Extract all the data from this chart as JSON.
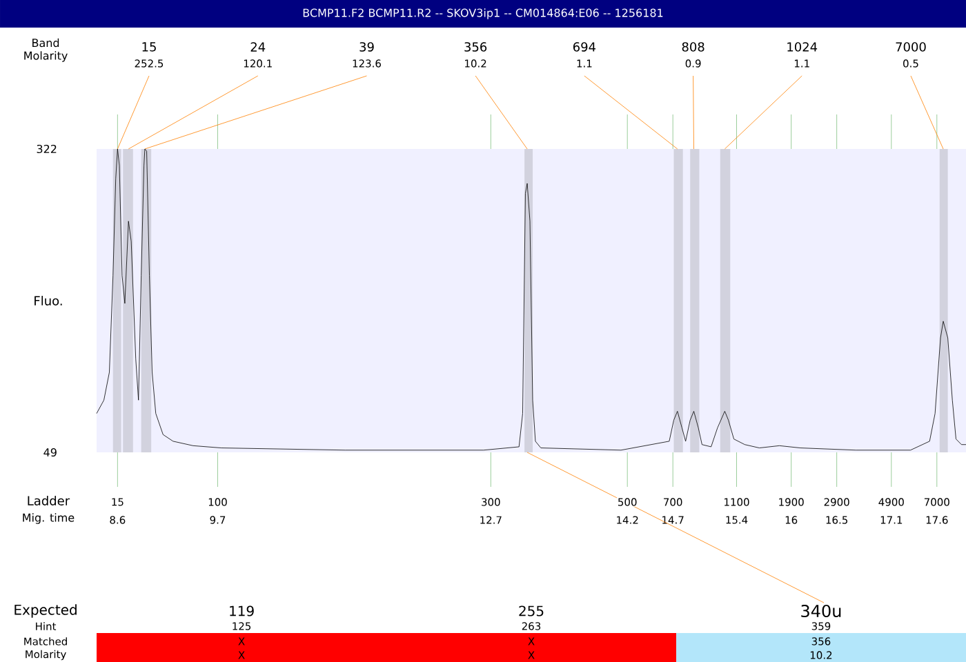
{
  "chart_data": {
    "type": "line",
    "title": "BCMP11.F2  BCMP11.R2 -- SKOV3ip1 -- CM014864:E06 -- 1256181",
    "xlabel": "Mig. time",
    "ylabel": "Fluo.",
    "xlim": [
      8.37,
      17.92
    ],
    "ylim": [
      49,
      322
    ],
    "yticks": [
      49,
      322
    ],
    "xticks": [
      8.6,
      9.7,
      12.7,
      14.2,
      14.7,
      15.4,
      16,
      16.5,
      17.1,
      17.6
    ],
    "x": [
      8.37,
      8.45,
      8.51,
      8.55,
      8.58,
      8.6,
      8.62,
      8.65,
      8.68,
      8.72,
      8.75,
      8.8,
      8.83,
      8.86,
      8.89,
      8.9,
      8.92,
      8.95,
      8.98,
      9.02,
      9.1,
      9.21,
      9.43,
      9.74,
      11.1,
      12.62,
      13.01,
      13.05,
      13.08,
      13.1,
      13.13,
      13.16,
      13.19,
      13.25,
      14.13,
      14.66,
      14.71,
      14.75,
      14.8,
      14.84,
      14.89,
      14.93,
      14.98,
      15.02,
      15.12,
      15.19,
      15.27,
      15.31,
      15.37,
      15.49,
      15.65,
      15.87,
      16.1,
      16.71,
      17.31,
      17.52,
      17.58,
      17.64,
      17.67,
      17.72,
      17.77,
      17.81,
      17.87,
      17.92
    ],
    "series": [
      {
        "color": "#000000",
        "values": [
          84,
          96,
          121,
          208,
          295,
          322,
          307,
          208,
          183,
          257,
          239,
          133,
          96,
          208,
          307,
          322,
          320,
          208,
          121,
          84,
          65,
          59,
          55,
          53,
          51,
          51,
          54,
          84,
          282,
          291,
          257,
          96,
          59,
          53,
          51,
          59,
          78,
          86,
          71,
          59,
          78,
          86,
          71,
          56,
          54,
          71,
          86,
          78,
          61,
          56,
          53,
          55,
          53,
          51,
          51,
          59,
          84,
          152,
          167,
          152,
          96,
          61,
          56,
          56
        ]
      }
    ],
    "bands": [
      {
        "axis": "x",
        "from": 8.55,
        "to": 8.64,
        "color": "#d2d2de"
      },
      {
        "axis": "x",
        "from": 8.66,
        "to": 8.77,
        "color": "#d2d2de"
      },
      {
        "axis": "x",
        "from": 8.86,
        "to": 8.97,
        "color": "#d2d2de"
      },
      {
        "axis": "x",
        "from": 13.07,
        "to": 13.16,
        "color": "#d2d2de"
      },
      {
        "axis": "x",
        "from": 14.71,
        "to": 14.81,
        "color": "#d2d2de"
      },
      {
        "axis": "x",
        "from": 14.89,
        "to": 14.99,
        "color": "#d2d2de"
      },
      {
        "axis": "x",
        "from": 15.22,
        "to": 15.33,
        "color": "#d2d2de"
      },
      {
        "axis": "x",
        "from": 17.63,
        "to": 17.72,
        "color": "#d2d2de"
      }
    ],
    "annotations": [
      "Band",
      "Molarity",
      "15",
      "24",
      "39",
      "356",
      "694",
      "808",
      "1024",
      "7000",
      {
        "text": "252.5",
        "x": 8.6,
        "y": 322
      },
      {
        "text": "120.1",
        "x": 8.72,
        "y": 322
      },
      {
        "text": "123.6",
        "x": 8.9,
        "y": 322
      },
      {
        "text": "10.2",
        "x": 13.1,
        "y": 322
      },
      {
        "text": "1.1",
        "x": 14.75,
        "y": 322
      },
      {
        "text": "0.9",
        "x": 14.93,
        "y": 322
      },
      {
        "text": "1.1",
        "x": 15.27,
        "y": 322
      },
      {
        "text": "0.5",
        "x": 17.67,
        "y": 322
      },
      "Ladder",
      "15",
      "100",
      "300",
      "500",
      "700",
      "1100",
      "1900",
      "2900",
      "4900",
      "7000",
      "Expected",
      "Hint",
      "Matched",
      "Molarity",
      "119",
      "255",
      {
        "text": "340u",
        "x": 13.1,
        "y": 49
      },
      "125",
      "263",
      "359",
      "X",
      "X",
      "356",
      "X",
      "X",
      "10.2"
    ]
  }
}
